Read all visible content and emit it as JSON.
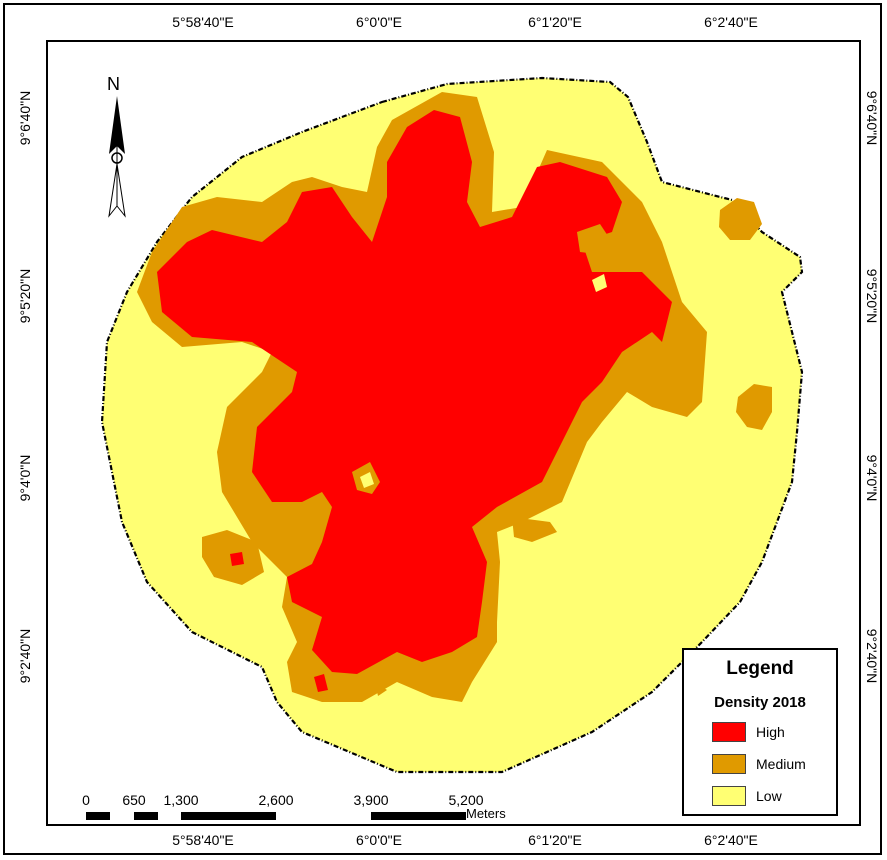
{
  "legend": {
    "title": "Legend",
    "subtitle": "Density 2018",
    "items": [
      {
        "label": "High",
        "color": "#ff0000"
      },
      {
        "label": "Medium",
        "color": "#e09a00"
      },
      {
        "label": "Low",
        "color": "#ffff73"
      }
    ]
  },
  "graticule": {
    "top": [
      "5°58'40\"E",
      "6°0'0\"E",
      "6°1'20\"E",
      "6°2'40\"E"
    ],
    "bottom": [
      "5°58'40\"E",
      "6°0'0\"E",
      "6°1'20\"E",
      "6°2'40\"E"
    ],
    "left": [
      "9°6'40\"N",
      "9°5'20\"N",
      "9°4'0\"N",
      "9°2'40\"N"
    ],
    "right": [
      "9°6'40\"N",
      "9°5'20\"N",
      "9°4'0\"N",
      "9°2'40\"N"
    ]
  },
  "north_arrow": {
    "label": "N"
  },
  "scale_bar": {
    "labels": [
      "0",
      "650",
      "1,300",
      "2,600",
      "3,900",
      "5,200"
    ],
    "unit": "Meters"
  }
}
